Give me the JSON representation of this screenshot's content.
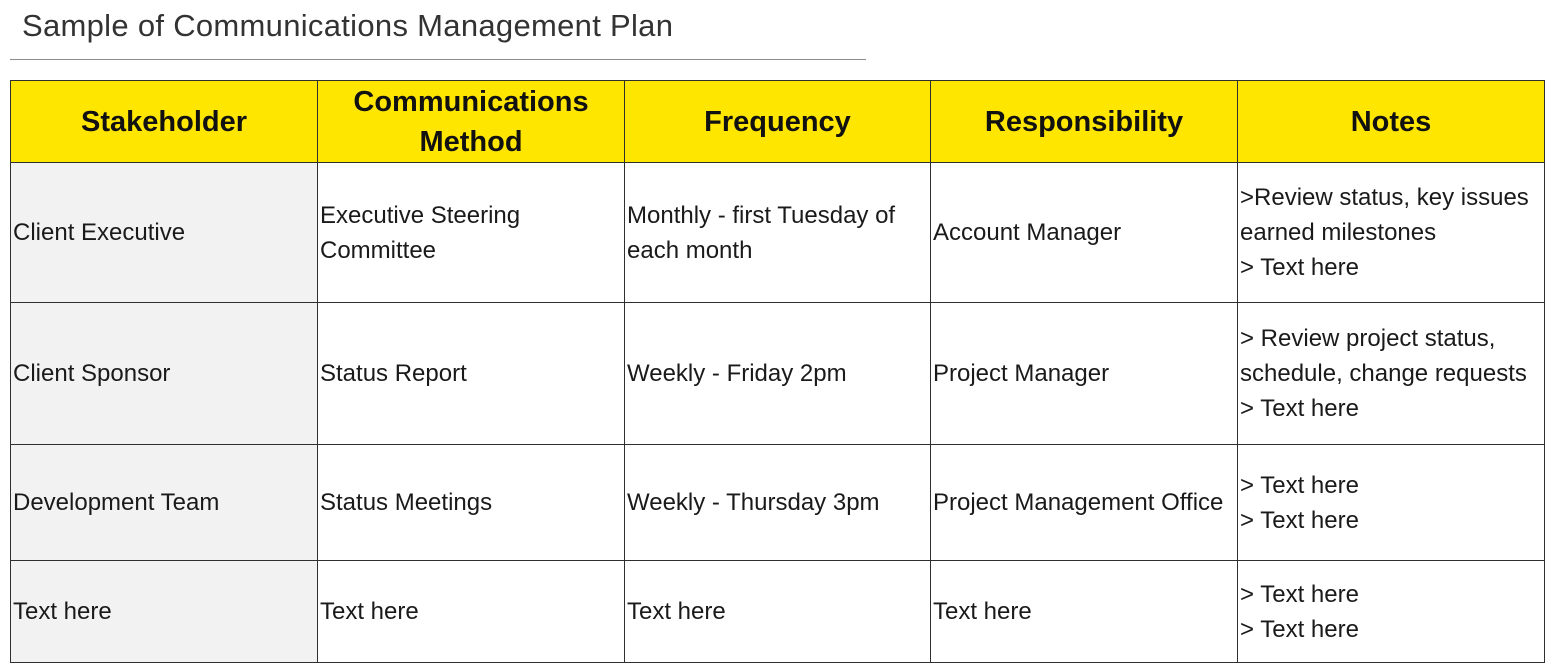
{
  "document": {
    "title": "Sample of Communications Management Plan"
  },
  "table": {
    "headers": [
      "Stakeholder",
      "Communications Method",
      "Frequency",
      "Responsibility",
      "Notes"
    ],
    "rows": [
      {
        "stakeholder": "Client Executive",
        "method": "Executive Steering Committee",
        "frequency": "Monthly - first Tuesday of each month",
        "responsibility": "Account Manager",
        "notes": [
          ">Review status, key issues earned milestones",
          "> Text here"
        ]
      },
      {
        "stakeholder": "Client Sponsor",
        "method": "Status Report",
        "frequency": "Weekly - Friday 2pm",
        "responsibility": "Project Manager",
        "notes": [
          "> Review project status, schedule, change requests",
          "> Text here"
        ]
      },
      {
        "stakeholder": "Development Team",
        "method": "Status Meetings",
        "frequency": "Weekly - Thursday 3pm",
        "responsibility": "Project Management Office",
        "notes": [
          "> Text here",
          "> Text here"
        ]
      },
      {
        "stakeholder": "Text here",
        "method": "Text here",
        "frequency": "Text here",
        "responsibility": "Text here",
        "notes": [
          "> Text here",
          "> Text here"
        ]
      }
    ]
  },
  "colors": {
    "header_background": "#ffe600",
    "stakeholder_column_background": "#f2f2f2",
    "border": "#2f2f2f"
  }
}
